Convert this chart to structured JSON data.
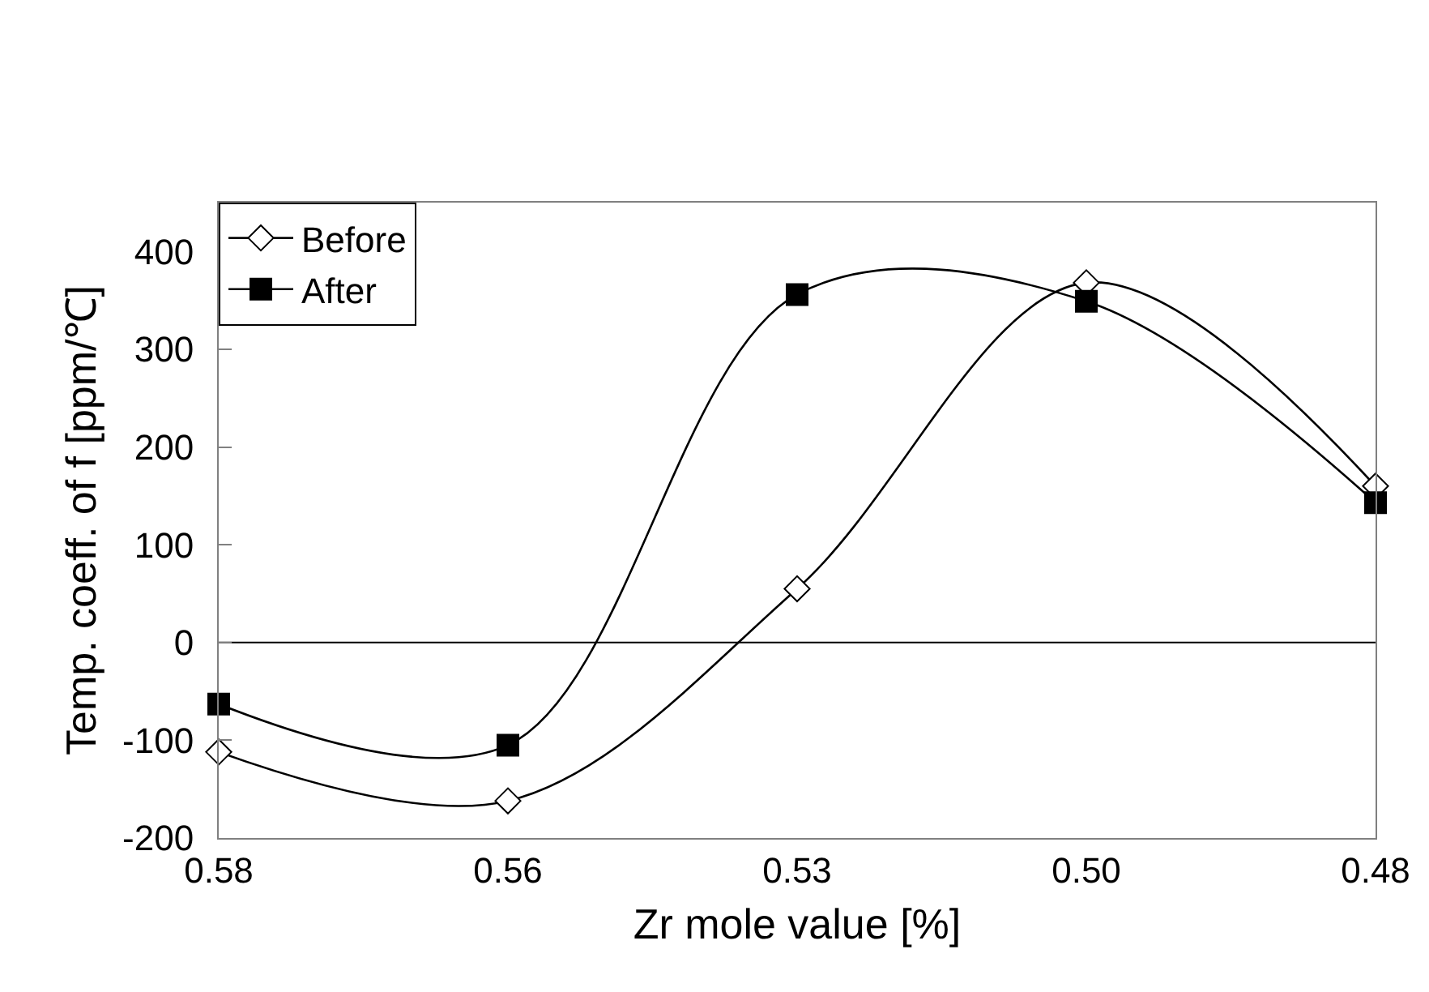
{
  "chart_data": {
    "type": "line",
    "xlabel": "Zr mole value [%]",
    "ylabel": "Temp. coeff. of f [ppm/℃]",
    "categories": [
      "0.58",
      "0.56",
      "0.53",
      "0.50",
      "0.48"
    ],
    "series": [
      {
        "name": "Before",
        "color": "#000000",
        "marker": "diamond",
        "values": [
          -112,
          -162,
          55,
          368,
          160
        ]
      },
      {
        "name": "After",
        "color": "#000000",
        "marker": "square",
        "values": [
          -63,
          -105,
          356,
          349,
          143
        ]
      }
    ],
    "ylim": [
      -200,
      450
    ],
    "yticks": [
      -200,
      -100,
      0,
      100,
      200,
      300,
      400
    ],
    "ref_lines": [
      {
        "axis": "y",
        "value": 0,
        "color": "#000000"
      }
    ],
    "grid": false,
    "legend": "top left"
  }
}
